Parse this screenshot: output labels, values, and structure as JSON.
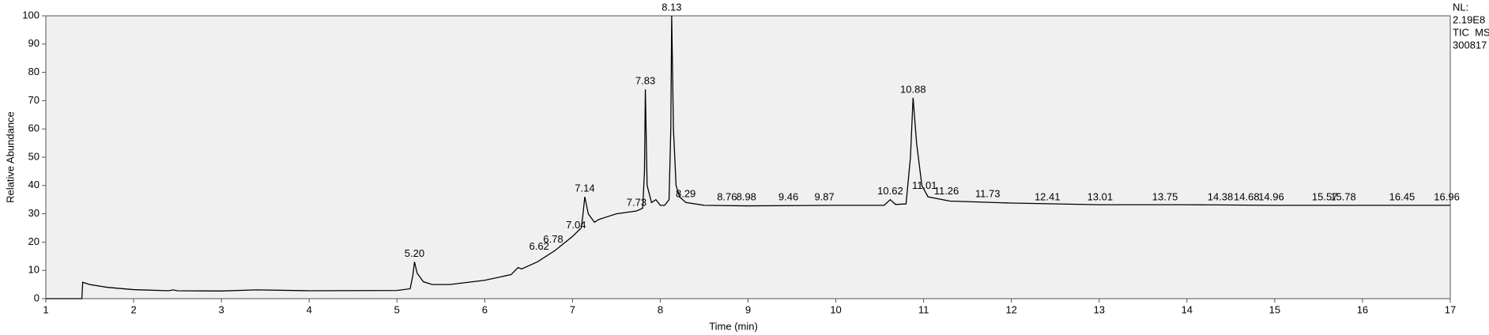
{
  "chart_data": {
    "type": "line",
    "xlabel": "Time (min)",
    "ylabel": "Relative Abundance",
    "info": [
      "NL:",
      "2.19E8",
      "TIC  MS",
      "300817"
    ],
    "x": [
      1.0,
      1.41,
      1.42,
      1.5,
      1.7,
      2.0,
      2.4,
      2.45,
      2.5,
      3.0,
      3.4,
      4.0,
      5.0,
      5.15,
      5.18,
      5.2,
      5.23,
      5.3,
      5.4,
      5.6,
      6.0,
      6.3,
      6.38,
      6.42,
      6.6,
      6.8,
      7.0,
      7.1,
      7.12,
      7.14,
      7.18,
      7.25,
      7.3,
      7.5,
      7.73,
      7.8,
      7.82,
      7.83,
      7.85,
      7.9,
      7.95,
      8.0,
      8.05,
      8.1,
      8.12,
      8.13,
      8.15,
      8.18,
      8.22,
      8.29,
      8.5,
      9.0,
      10.0,
      10.55,
      10.62,
      10.68,
      10.8,
      10.85,
      10.88,
      10.92,
      10.98,
      11.05,
      11.3,
      12.0,
      13.0,
      14.0,
      15.0,
      16.0,
      17.0
    ],
    "series": [
      {
        "color": "#000000",
        "values": [
          0,
          0,
          5.8,
          5,
          4,
          3.2,
          2.8,
          3.1,
          2.8,
          2.7,
          3.1,
          2.8,
          2.9,
          3.5,
          8,
          13,
          9,
          6,
          5,
          5,
          6.5,
          8.5,
          11,
          10.5,
          13,
          17,
          22,
          25,
          30,
          36,
          30,
          27,
          28,
          30,
          31,
          32,
          45,
          74,
          40,
          34,
          35,
          33,
          33,
          35,
          60,
          100,
          60,
          40,
          36,
          34,
          33,
          32.8,
          33,
          33,
          35,
          33.3,
          33.5,
          50,
          71,
          55,
          40,
          36,
          34.5,
          33.8,
          33.2,
          33.2,
          33,
          33,
          33
        ]
      }
    ],
    "annotations": [
      {
        "text": "5.20",
        "x": 5.2,
        "y": 13
      },
      {
        "text": "6.62",
        "x": 6.62,
        "y": 15.5
      },
      {
        "text": "6.78",
        "x": 6.78,
        "y": 18
      },
      {
        "text": "7.04",
        "x": 7.04,
        "y": 23
      },
      {
        "text": "7.14",
        "x": 7.14,
        "y": 36
      },
      {
        "text": "7.73",
        "x": 7.73,
        "y": 31
      },
      {
        "text": "7.83",
        "x": 7.83,
        "y": 74
      },
      {
        "text": "8.13",
        "x": 8.13,
        "y": 100
      },
      {
        "text": "8.29",
        "x": 8.29,
        "y": 34
      },
      {
        "text": "8.76",
        "x": 8.76,
        "y": 33
      },
      {
        "text": "8.98",
        "x": 8.98,
        "y": 33
      },
      {
        "text": "9.46",
        "x": 9.46,
        "y": 33
      },
      {
        "text": "9.87",
        "x": 9.87,
        "y": 33
      },
      {
        "text": "10.62",
        "x": 10.62,
        "y": 35
      },
      {
        "text": "10.88",
        "x": 10.88,
        "y": 71
      },
      {
        "text": "11.01",
        "x": 11.01,
        "y": 37
      },
      {
        "text": "11.26",
        "x": 11.26,
        "y": 35
      },
      {
        "text": "11.73",
        "x": 11.73,
        "y": 34
      },
      {
        "text": "12.41",
        "x": 12.41,
        "y": 33
      },
      {
        "text": "13.01",
        "x": 13.01,
        "y": 33
      },
      {
        "text": "13.75",
        "x": 13.75,
        "y": 33
      },
      {
        "text": "14.38",
        "x": 14.38,
        "y": 33
      },
      {
        "text": "14.68",
        "x": 14.68,
        "y": 33
      },
      {
        "text": "14.96",
        "x": 14.96,
        "y": 33
      },
      {
        "text": "15.57",
        "x": 15.57,
        "y": 33
      },
      {
        "text": "15.78",
        "x": 15.78,
        "y": 33
      },
      {
        "text": "16.45",
        "x": 16.45,
        "y": 33
      },
      {
        "text": "16.96",
        "x": 16.96,
        "y": 33
      }
    ],
    "xlim": [
      1,
      17
    ],
    "xticks": [
      1,
      2,
      3,
      4,
      5,
      6,
      7,
      8,
      9,
      10,
      11,
      12,
      13,
      14,
      15,
      16,
      17
    ],
    "ylim": [
      0,
      100
    ],
    "yticks": [
      0,
      10,
      20,
      30,
      40,
      50,
      60,
      70,
      80,
      90,
      100
    ]
  }
}
